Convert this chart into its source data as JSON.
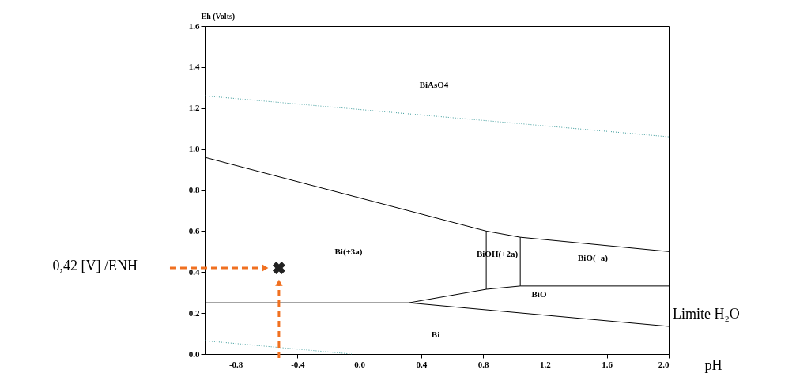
{
  "chart_data": {
    "type": "line",
    "xlabel": "pH",
    "ylabel": "Eh (Volts)",
    "xlim": [
      -1.0,
      2.0
    ],
    "ylim": [
      0.0,
      1.6
    ],
    "xticks": [
      {
        "value": -0.8,
        "label": "-0.8"
      },
      {
        "value": -0.4,
        "label": "-0.4"
      },
      {
        "value": 0.0,
        "label": "0.0"
      },
      0.4,
      0.8,
      1.2,
      1.6,
      {
        "value": 2.0,
        "label": "2.0"
      }
    ],
    "yticks": [
      {
        "value": 0.0,
        "label": "0.0"
      },
      0.2,
      0.4,
      0.6,
      0.8,
      {
        "value": 1.0,
        "label": "1.0"
      },
      1.2,
      1.4,
      1.6
    ],
    "grid": false,
    "series": [
      {
        "x": [
          -1.0,
          2.0
        ],
        "values": [
          1.26,
          1.06
        ],
        "color": "#3a9a9a",
        "line_style": "dotted"
      },
      {
        "x": [
          -1.0,
          -0.05
        ],
        "values": [
          0.065,
          0.0
        ],
        "color": "#3a9a9a",
        "line_style": "dotted"
      },
      {
        "x": [
          -1.0,
          0.82,
          1.04,
          2.0
        ],
        "values": [
          0.96,
          0.6,
          0.57,
          0.5
        ],
        "color": "#000000",
        "line_style": "solid"
      },
      {
        "x": [
          0.82,
          0.82
        ],
        "values": [
          0.6,
          0.316
        ],
        "color": "#000000",
        "line_style": "solid"
      },
      {
        "x": [
          1.04,
          1.04
        ],
        "values": [
          0.57,
          0.332
        ],
        "color": "#000000",
        "line_style": "solid"
      },
      {
        "x": [
          -1.0,
          0.32,
          0.82,
          1.04,
          2.0
        ],
        "values": [
          0.25,
          0.25,
          0.316,
          0.332,
          0.332
        ],
        "color": "#000000",
        "line_style": "solid"
      },
      {
        "x": [
          0.32,
          2.0
        ],
        "values": [
          0.25,
          0.135
        ],
        "color": "#000000",
        "line_style": "solid"
      },
      {
        "type": "scatter",
        "x": [
          -0.52
        ],
        "values": [
          0.42
        ],
        "color": "#222222",
        "marker": "cross"
      }
    ],
    "annotations": [
      "BiAsO4",
      "Bi(+3a)",
      "BiOH(+2a)",
      "BiO(+a)",
      "BiO",
      "Bi",
      "0,42 [V] /ENH",
      "Limite H₂O"
    ]
  }
}
